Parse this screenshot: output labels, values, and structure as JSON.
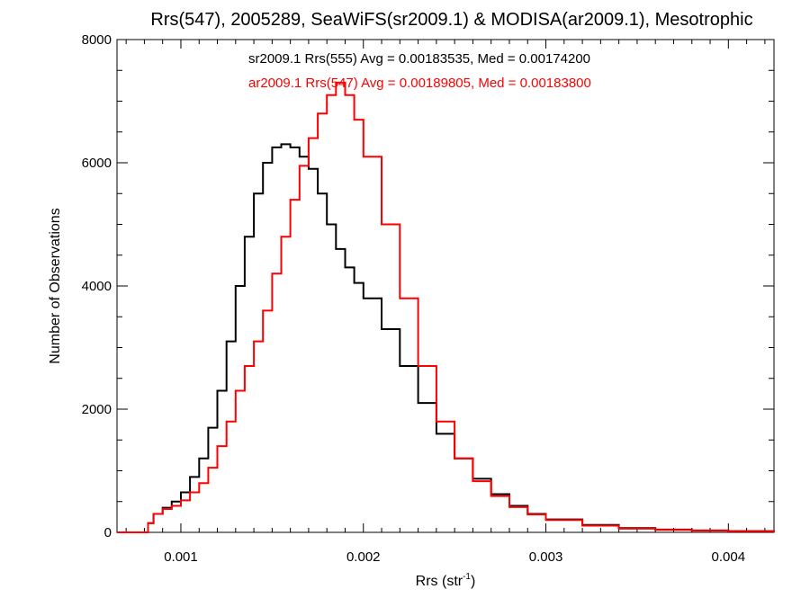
{
  "chart_data": {
    "type": "histogram-step",
    "title": "Rrs(547), 2005289, SeaWiFS(sr2009.1) & MODISA(ar2009.1), Mesotrophic",
    "xlabel_main": "Rrs (str",
    "xlabel_sup": "-1",
    "xlabel_close": ")",
    "ylabel": "Number of Observations",
    "xlim": [
      0.00065,
      0.00425
    ],
    "ylim": [
      0,
      8000
    ],
    "x_ticks": [
      0.001,
      0.002,
      0.003,
      0.004
    ],
    "x_tick_labels": [
      "0.001",
      "0.002",
      "0.003",
      "0.004"
    ],
    "y_ticks": [
      0,
      2000,
      4000,
      6000,
      8000
    ],
    "y_tick_labels": [
      "0",
      "2000",
      "4000",
      "6000",
      "8000"
    ],
    "grid": false,
    "series": [
      {
        "name": "sr2009.1 Rrs(555) Avg = 0.00183535, Med = 0.00174200",
        "color": "#000000",
        "x": [
          0.00065,
          0.0008,
          0.00082,
          0.00085,
          0.0009,
          0.00095,
          0.001,
          0.00105,
          0.0011,
          0.00115,
          0.0012,
          0.00125,
          0.0013,
          0.00135,
          0.0014,
          0.00145,
          0.0015,
          0.00155,
          0.0016,
          0.00165,
          0.0017,
          0.00175,
          0.0018,
          0.00185,
          0.0019,
          0.00195,
          0.002,
          0.0021,
          0.0022,
          0.0023,
          0.0024,
          0.0025,
          0.0026,
          0.0027,
          0.0028,
          0.0029,
          0.003,
          0.0032,
          0.0034,
          0.0036,
          0.0038,
          0.004,
          0.00425
        ],
        "y": [
          0,
          0,
          150,
          300,
          400,
          500,
          650,
          900,
          1200,
          1700,
          2300,
          3100,
          4000,
          4800,
          5500,
          6000,
          6250,
          6300,
          6250,
          6100,
          5900,
          5500,
          5000,
          4600,
          4300,
          4050,
          3800,
          3300,
          2700,
          2100,
          1600,
          1200,
          870,
          620,
          430,
          300,
          210,
          120,
          70,
          45,
          30,
          20,
          10
        ]
      },
      {
        "name": "ar2009.1 Rrs(547) Avg = 0.00189805, Med = 0.00183800",
        "color": "#ff0000",
        "x": [
          0.00065,
          0.0008,
          0.00082,
          0.00085,
          0.0009,
          0.00095,
          0.001,
          0.00105,
          0.0011,
          0.00115,
          0.0012,
          0.00125,
          0.0013,
          0.00135,
          0.0014,
          0.00145,
          0.0015,
          0.00155,
          0.0016,
          0.00165,
          0.0017,
          0.00175,
          0.0018,
          0.00185,
          0.0019,
          0.00195,
          0.002,
          0.0021,
          0.0022,
          0.0023,
          0.0024,
          0.0025,
          0.0026,
          0.0027,
          0.0028,
          0.0029,
          0.003,
          0.0032,
          0.0034,
          0.0036,
          0.0038,
          0.004,
          0.00425
        ],
        "y": [
          0,
          0,
          150,
          300,
          380,
          430,
          520,
          650,
          800,
          1050,
          1400,
          1800,
          2300,
          2700,
          3100,
          3600,
          4200,
          4800,
          5400,
          5950,
          6400,
          6800,
          7100,
          7300,
          7100,
          6700,
          6100,
          5000,
          3800,
          2700,
          1800,
          1200,
          830,
          590,
          410,
          290,
          200,
          110,
          60,
          40,
          28,
          18,
          8
        ]
      }
    ]
  }
}
